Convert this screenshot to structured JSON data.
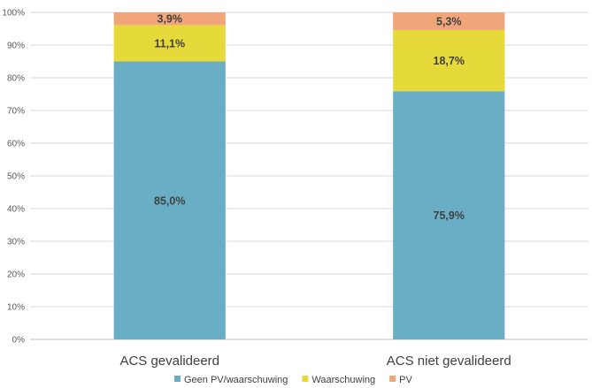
{
  "chart_data": {
    "type": "bar",
    "stacked": true,
    "percent": true,
    "categories": [
      "ACS gevalideerd",
      "ACS niet gevalideerd"
    ],
    "series": [
      {
        "name": "Geen PV/waarschuwing",
        "values": [
          85.0,
          75.9
        ],
        "labels": [
          "85,0%",
          "75,9%"
        ],
        "color": "#6aaec6"
      },
      {
        "name": "Waarschuwing",
        "values": [
          11.1,
          18.7
        ],
        "labels": [
          "11,1%",
          "18,7%"
        ],
        "color": "#e6d93a"
      },
      {
        "name": "PV",
        "values": [
          3.9,
          5.3
        ],
        "labels": [
          "3,9%",
          "5,3%"
        ],
        "color": "#f0a67a"
      }
    ],
    "yticks": [
      "0%",
      "10%",
      "20%",
      "30%",
      "40%",
      "50%",
      "60%",
      "70%",
      "80%",
      "90%",
      "100%"
    ],
    "ylim": [
      0,
      100
    ],
    "grid": true,
    "legend_position": "bottom"
  }
}
